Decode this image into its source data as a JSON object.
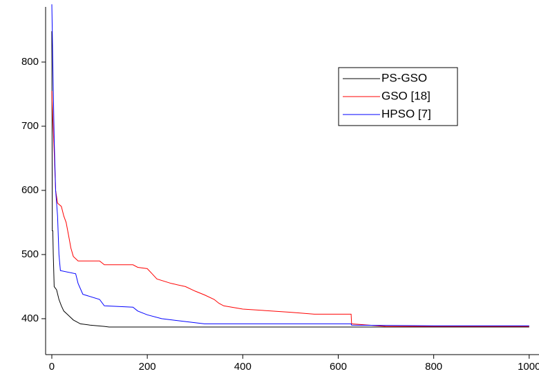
{
  "chart_data": {
    "type": "line",
    "xlim": [
      -13,
      1021
    ],
    "ylim": [
      344,
      886
    ],
    "xticks": [
      0,
      200,
      400,
      600,
      800,
      1000
    ],
    "yticks": [
      400,
      500,
      600,
      700,
      800
    ],
    "legend": "upper-right",
    "grid": false,
    "series": [
      {
        "name": "PS-GSO",
        "color": "#000000",
        "x": [
          0,
          1,
          2,
          3,
          5,
          10,
          15,
          20,
          25,
          35,
          45,
          60,
          80,
          110,
          120,
          1000
        ],
        "values": [
          848,
          537,
          537,
          500,
          450,
          445,
          430,
          420,
          412,
          405,
          398,
          392,
          390,
          388,
          387,
          387
        ]
      },
      {
        "name": "GSO [18]",
        "color": "#ff0000",
        "x": [
          0,
          2,
          5,
          8,
          12,
          20,
          25,
          30,
          35,
          40,
          45,
          55,
          100,
          110,
          170,
          180,
          200,
          210,
          220,
          250,
          280,
          300,
          320,
          340,
          350,
          360,
          400,
          500,
          550,
          627,
          628,
          700,
          1000
        ],
        "values": [
          755,
          712,
          660,
          600,
          580,
          575,
          560,
          550,
          530,
          510,
          497,
          490,
          490,
          484,
          484,
          480,
          478,
          470,
          462,
          455,
          450,
          443,
          437,
          430,
          424,
          420,
          415,
          410,
          407,
          407,
          392,
          388,
          388
        ]
      },
      {
        "name": "HPSO [7]",
        "color": "#0000ff",
        "x": [
          0,
          2,
          5,
          8,
          12,
          15,
          18,
          50,
          55,
          65,
          100,
          110,
          170,
          180,
          200,
          230,
          320,
          627,
          628,
          800,
          1000
        ],
        "values": [
          890,
          800,
          680,
          600,
          560,
          500,
          475,
          470,
          455,
          438,
          430,
          420,
          418,
          412,
          406,
          400,
          392,
          392,
          390,
          389,
          389
        ]
      }
    ]
  }
}
